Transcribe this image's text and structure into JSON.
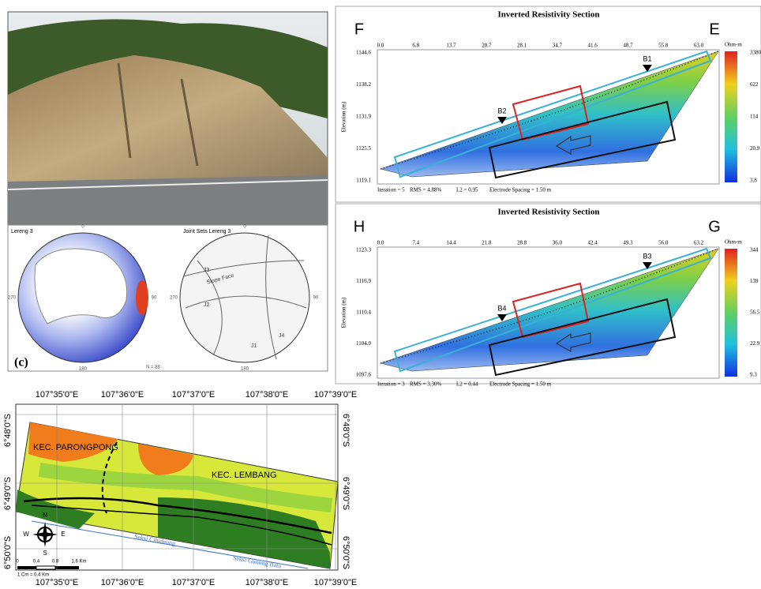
{
  "stereonets": {
    "left": {
      "title": "Lereng 3",
      "directions": [
        "0",
        "90",
        "180",
        "270"
      ],
      "count": "N = 88",
      "panel_label": "(c)"
    },
    "right": {
      "title": "Joint Sets Lereng 3",
      "directions": [
        "0",
        "90",
        "180",
        "270"
      ],
      "sets": [
        "J1",
        "J2",
        "J3",
        "J4"
      ],
      "slope": "Slope Face"
    }
  },
  "sections": [
    {
      "title": "Inverted Resistivity Section",
      "left_label": "F",
      "right_label": "E",
      "distance_ticks": [
        "0.0",
        "6.8",
        "13.7",
        "20.7",
        "28.1",
        "34.7",
        "41.6",
        "48.7",
        "55.8",
        "63.0"
      ],
      "elevation_ticks": [
        "1144.6",
        "1138.2",
        "1131.9",
        "1125.5",
        "1119.1"
      ],
      "elevation_label": "Elevation (m)",
      "footer": [
        "Iteration = 5",
        "RMS = 4.88%",
        "L2 = 0.95",
        "Electrode Spacing = 1.50 m"
      ],
      "unit": "Ohm-m",
      "scale_labels": [
        "3380",
        "622",
        "114",
        "20.9",
        "3.8"
      ],
      "boreholes": [
        "B1",
        "B2"
      ]
    },
    {
      "title": "Inverted Resistivity Section",
      "left_label": "H",
      "right_label": "G",
      "distance_ticks": [
        "0.0",
        "7.4",
        "14.4",
        "21.8",
        "28.8",
        "36.0",
        "42.4",
        "49.3",
        "56.0",
        "63.2"
      ],
      "elevation_ticks": [
        "1123.3",
        "1116.9",
        "1110.4",
        "1104.0",
        "1097.6"
      ],
      "elevation_label": "Elevation (m)",
      "footer": [
        "Iteration = 3",
        "RMS = 3.30%",
        "L2 = 0.44",
        "Electrode Spacing = 1.50 m"
      ],
      "unit": "Ohm-m",
      "scale_labels": [
        "344",
        "139",
        "56.5",
        "22.9",
        "9.3"
      ],
      "boreholes": [
        "B3",
        "B4"
      ]
    }
  ],
  "map": {
    "lon_labels": [
      "107°35'0\"E",
      "107°36'0\"E",
      "107°37'0\"E",
      "107°38'0\"E",
      "107°39'0\"E"
    ],
    "lat_labels": [
      "6°48'0\"S",
      "6°49'0\"S",
      "6°50'0\"S"
    ],
    "places": [
      "KEC. PARONGPONG",
      "KEC. LEMBANG"
    ],
    "sections": [
      "Seksi Cihideung",
      "Seksi Gunung Batu"
    ],
    "compass": [
      "N",
      "E",
      "S",
      "W"
    ],
    "scale_ticks": [
      "0",
      "0.4",
      "0.8",
      "1.6 Km"
    ],
    "scale_note": "1 Cm = 0.4 Km"
  }
}
